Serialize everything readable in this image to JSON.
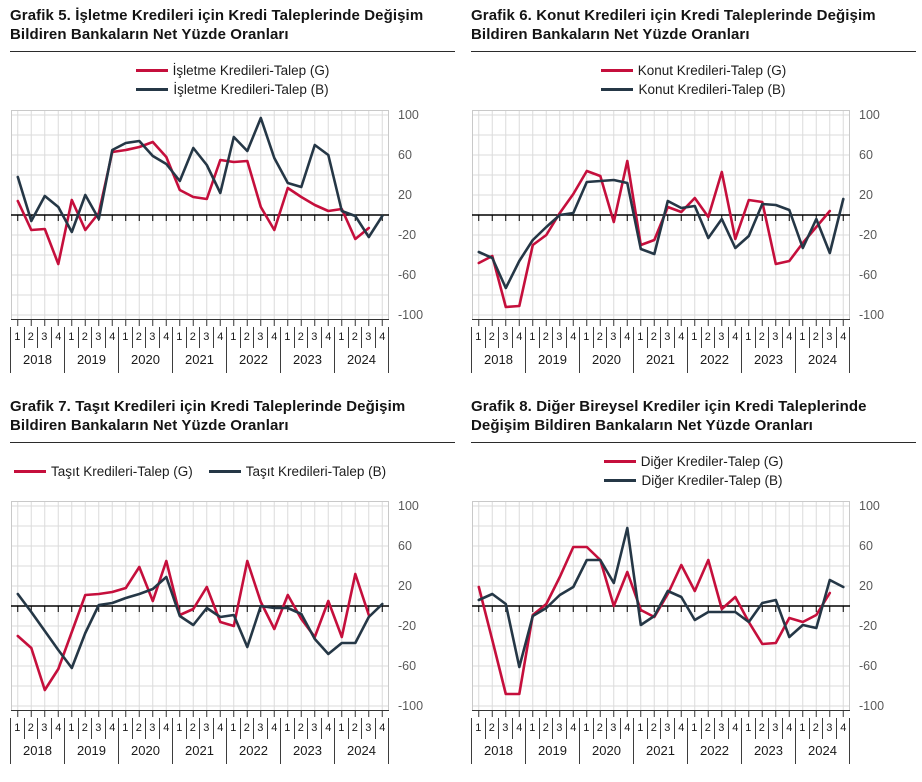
{
  "page": {
    "background": "#ffffff"
  },
  "colors": {
    "series_g": "#C50F3C",
    "series_b": "#253746",
    "grid": "#DBDBDB",
    "zero_line": "#000000",
    "plot_border": "#C9C9C9",
    "axis_tick": "#333333",
    "tick_label": "#595959",
    "x_label": "#1a1a1a"
  },
  "axis": {
    "y_ticks": [
      100,
      60,
      20,
      -20,
      -60,
      -100
    ],
    "ylim": [
      -105,
      105
    ],
    "grid_step": 20,
    "quarters": [
      "1",
      "2",
      "3",
      "4"
    ],
    "years": [
      "2018",
      "2019",
      "2020",
      "2021",
      "2022",
      "2023",
      "2024"
    ]
  },
  "chart_data": [
    {
      "type": "line",
      "title": "Grafik 5. İşletme Kredileri için Kredi Taleplerinde Değişim Bildiren Bankaların Net Yüzde Oranları",
      "legend_layout": "stacked",
      "legend_position": "top-center",
      "grid": true,
      "ylim": [
        -100,
        100
      ],
      "yticks": [
        100,
        60,
        20,
        -20,
        -60,
        -100
      ],
      "categories": [
        "2018Ç1",
        "2018Ç2",
        "2018Ç3",
        "2018Ç4",
        "2019Ç1",
        "2019Ç2",
        "2019Ç3",
        "2019Ç4",
        "2020Ç1",
        "2020Ç2",
        "2020Ç3",
        "2020Ç4",
        "2021Ç1",
        "2021Ç2",
        "2021Ç3",
        "2021Ç4",
        "2022Ç1",
        "2022Ç2",
        "2022Ç3",
        "2022Ç4",
        "2023Ç1",
        "2023Ç2",
        "2023Ç3",
        "2023Ç4",
        "2024Ç1",
        "2024Ç2",
        "2024Ç3",
        "2024Ç4"
      ],
      "series": [
        {
          "name": "İşletme Kredileri-Talep (G)",
          "color": "#C50F3C",
          "values": [
            14,
            -15,
            -14,
            -49,
            15,
            -15,
            2,
            63,
            65,
            68,
            73,
            58,
            25,
            18,
            16,
            55,
            53,
            54,
            8,
            -15,
            27,
            18,
            10,
            4,
            6,
            -24,
            -13
          ]
        },
        {
          "name": "İşletme Kredileri-Talep (B)",
          "color": "#253746",
          "values": [
            38,
            -6,
            19,
            8,
            -17,
            20,
            -4,
            65,
            72,
            74,
            59,
            51,
            34,
            67,
            50,
            22,
            78,
            64,
            97,
            57,
            32,
            28,
            70,
            60,
            4,
            -1,
            -22,
            -1
          ]
        }
      ]
    },
    {
      "type": "line",
      "title": "Grafik 6. Konut Kredileri için Kredi Taleplerinde Değişim Bildiren Bankaların Net Yüzde Oranları",
      "legend_layout": "stacked",
      "legend_position": "top-center",
      "grid": true,
      "ylim": [
        -100,
        100
      ],
      "yticks": [
        100,
        60,
        20,
        -20,
        -60,
        -100
      ],
      "categories": [
        "2018Ç1",
        "2018Ç2",
        "2018Ç3",
        "2018Ç4",
        "2019Ç1",
        "2019Ç2",
        "2019Ç3",
        "2019Ç4",
        "2020Ç1",
        "2020Ç2",
        "2020Ç3",
        "2020Ç4",
        "2021Ç1",
        "2021Ç2",
        "2021Ç3",
        "2021Ç4",
        "2022Ç1",
        "2022Ç2",
        "2022Ç3",
        "2022Ç4",
        "2023Ç1",
        "2023Ç2",
        "2023Ç3",
        "2023Ç4",
        "2024Ç1",
        "2024Ç2",
        "2024Ç3",
        "2024Ç4"
      ],
      "series": [
        {
          "name": "Konut Kredileri-Talep (G)",
          "color": "#C50F3C",
          "values": [
            -48,
            -41,
            -92,
            -91,
            -30,
            -20,
            2,
            21,
            44,
            39,
            -7,
            54,
            -30,
            -25,
            8,
            3,
            17,
            -2,
            43,
            -24,
            15,
            13,
            -49,
            -46,
            -28,
            -12,
            4
          ]
        },
        {
          "name": "Konut Kredileri-Talep (B)",
          "color": "#253746",
          "values": [
            -37,
            -43,
            -73,
            -46,
            -25,
            -12,
            0,
            2,
            33,
            34,
            35,
            32,
            -34,
            -39,
            14,
            7,
            9,
            -23,
            -4,
            -33,
            -21,
            11,
            10,
            5,
            -33,
            -4,
            -38,
            16
          ]
        }
      ]
    },
    {
      "type": "line",
      "title": "Grafik 7. Taşıt Kredileri için Kredi Taleplerinde Değişim Bildiren Bankaların Net Yüzde Oranları",
      "legend_layout": "inline",
      "legend_position": "top-left",
      "grid": true,
      "ylim": [
        -100,
        100
      ],
      "yticks": [
        100,
        60,
        20,
        -20,
        -60,
        -100
      ],
      "categories": [
        "2018Ç1",
        "2018Ç2",
        "2018Ç3",
        "2018Ç4",
        "2019Ç1",
        "2019Ç2",
        "2019Ç3",
        "2019Ç4",
        "2020Ç1",
        "2020Ç2",
        "2020Ç3",
        "2020Ç4",
        "2021Ç1",
        "2021Ç2",
        "2021Ç3",
        "2021Ç4",
        "2022Ç1",
        "2022Ç2",
        "2022Ç3",
        "2022Ç4",
        "2023Ç1",
        "2023Ç2",
        "2023Ç3",
        "2023Ç4",
        "2024Ç1",
        "2024Ç2",
        "2024Ç3",
        "2024Ç4"
      ],
      "series": [
        {
          "name": "Taşıt Kredileri-Talep (G)",
          "color": "#C50F3C",
          "values": [
            -30,
            -42,
            -84,
            -63,
            -26,
            11,
            12,
            14,
            18,
            39,
            5,
            45,
            -9,
            -3,
            19,
            -16,
            -20,
            45,
            4,
            -23,
            11,
            -13,
            -31,
            5,
            -31,
            32,
            -9
          ]
        },
        {
          "name": "Taşıt Kredileri-Talep (B)",
          "color": "#253746",
          "values": [
            12,
            -6,
            -25,
            -44,
            -62,
            -27,
            1,
            3,
            8,
            12,
            17,
            29,
            -10,
            -19,
            -2,
            -11,
            -9,
            -41,
            0,
            -2,
            -2,
            -8,
            -33,
            -48,
            -37,
            -37,
            -11,
            2
          ]
        }
      ]
    },
    {
      "type": "line",
      "title": "Grafik 8. Diğer Bireysel Krediler için Kredi Taleplerinde Değişim Bildiren Bankaların Net Yüzde Oranları",
      "legend_layout": "stacked",
      "legend_position": "top-center",
      "grid": true,
      "ylim": [
        -100,
        100
      ],
      "yticks": [
        100,
        60,
        20,
        -20,
        -60,
        -100
      ],
      "categories": [
        "2018Ç1",
        "2018Ç2",
        "2018Ç3",
        "2018Ç4",
        "2019Ç1",
        "2019Ç2",
        "2019Ç3",
        "2019Ç4",
        "2020Ç1",
        "2020Ç2",
        "2020Ç3",
        "2020Ç4",
        "2021Ç1",
        "2021Ç2",
        "2021Ç3",
        "2021Ç4",
        "2022Ç1",
        "2022Ç2",
        "2022Ç3",
        "2022Ç4",
        "2023Ç1",
        "2023Ç2",
        "2023Ç3",
        "2023Ç4",
        "2024Ç1",
        "2024Ç2",
        "2024Ç3",
        "2024Ç4"
      ],
      "series": [
        {
          "name": "Diğer Krediler-Talep (G)",
          "color": "#C50F3C",
          "values": [
            19,
            -34,
            -88,
            -88,
            -9,
            2,
            29,
            59,
            59,
            46,
            0,
            34,
            -4,
            -11,
            12,
            41,
            15,
            46,
            -3,
            9,
            -16,
            -38,
            -37,
            -12,
            -16,
            -9,
            13
          ]
        },
        {
          "name": "Diğer Krediler-Talep (B)",
          "color": "#253746",
          "values": [
            6,
            12,
            2,
            -61,
            -10,
            -2,
            11,
            19,
            46,
            46,
            23,
            78,
            -19,
            -10,
            15,
            9,
            -14,
            -6,
            -6,
            -6,
            -16,
            3,
            6,
            -31,
            -19,
            -22,
            26,
            19
          ]
        }
      ]
    }
  ]
}
